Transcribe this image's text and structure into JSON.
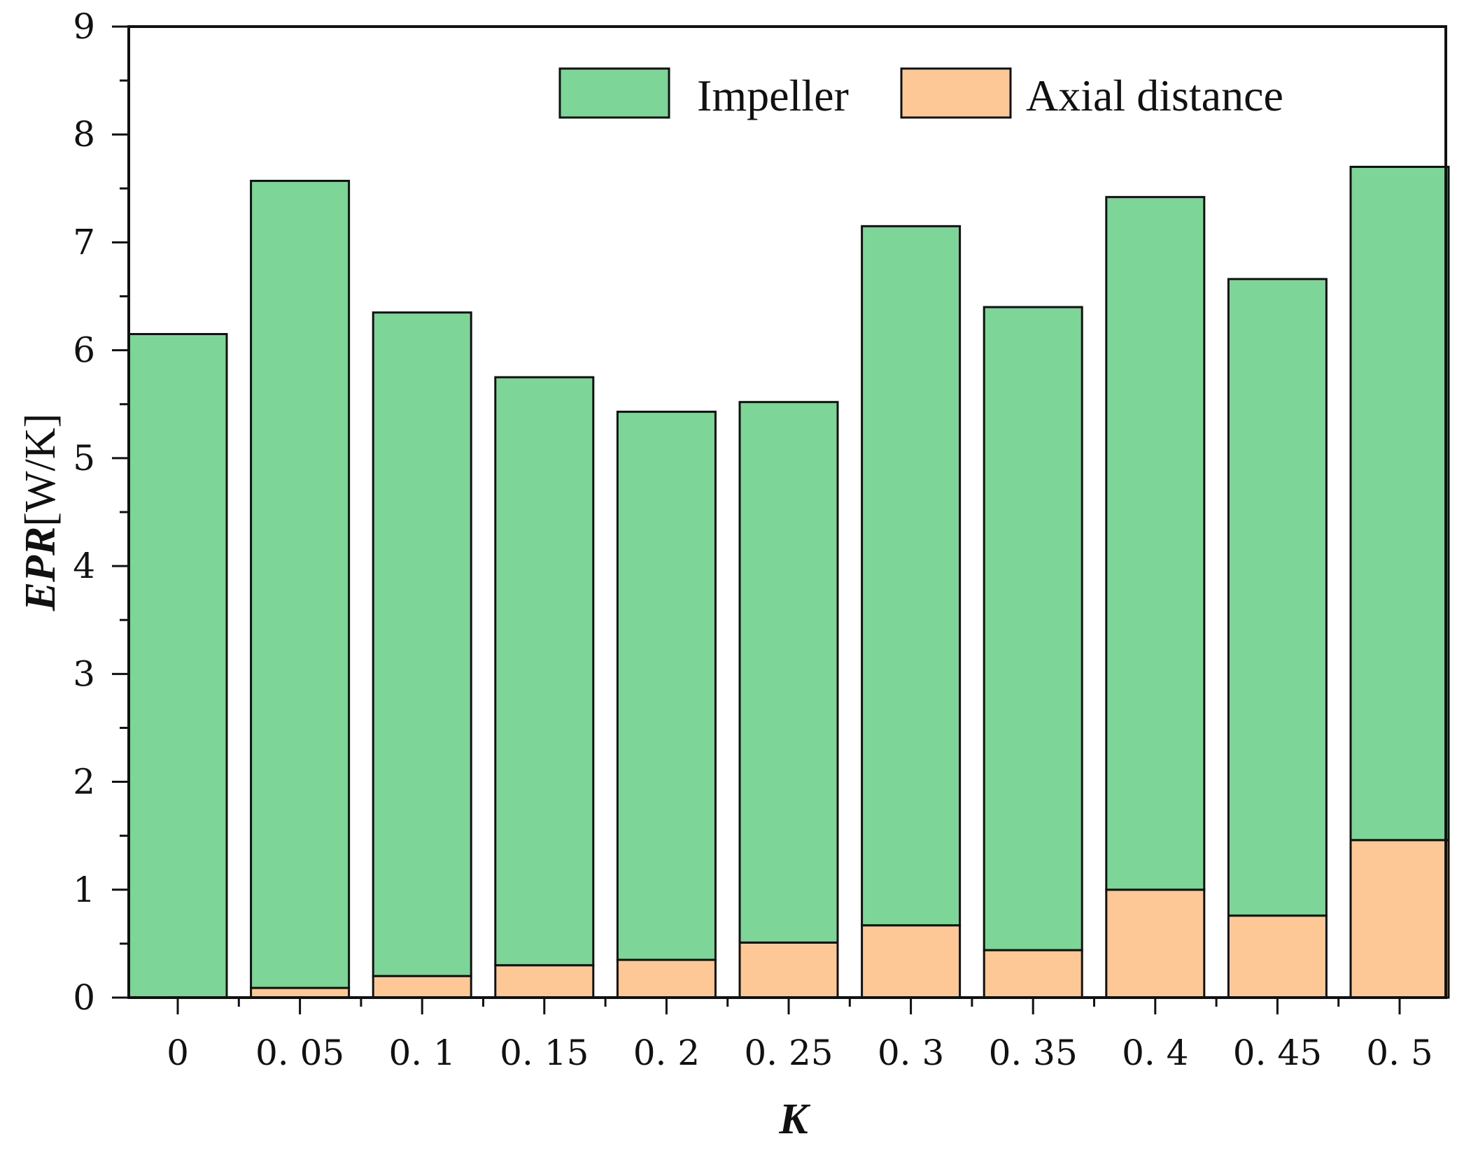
{
  "chart_data": {
    "type": "bar",
    "stacked": true,
    "categories": [
      "0",
      "0. 05",
      "0. 1",
      "0. 15",
      "0. 2",
      "0. 25",
      "0. 3",
      "0. 35",
      "0. 4",
      "0. 45",
      "0. 5"
    ],
    "series": [
      {
        "name": "Axial distance",
        "color": "#fdc896",
        "values": [
          0.0,
          0.09,
          0.2,
          0.3,
          0.35,
          0.51,
          0.67,
          0.44,
          1.0,
          0.76,
          1.46
        ]
      },
      {
        "name": "Impeller",
        "color": "#7dd598",
        "values": [
          6.15,
          7.48,
          6.15,
          5.45,
          5.08,
          5.01,
          6.48,
          5.96,
          6.42,
          5.9,
          6.24
        ]
      }
    ],
    "totals": [
      6.15,
      7.57,
      6.35,
      5.75,
      5.43,
      5.52,
      7.15,
      6.4,
      7.42,
      6.66,
      7.7
    ],
    "xlabel": "K",
    "ylabel_italic": "EPR",
    "ylabel_unit": "[W/K]",
    "ylim": [
      0,
      9
    ],
    "yticks": [
      "0",
      "1",
      "2",
      "3",
      "4",
      "5",
      "6",
      "7",
      "8",
      "9"
    ],
    "grid": false,
    "legend": {
      "position": "top-right",
      "entries": [
        {
          "label": "Impeller",
          "color": "#7dd598"
        },
        {
          "label": "Axial distance",
          "color": "#fdc896"
        }
      ]
    }
  }
}
